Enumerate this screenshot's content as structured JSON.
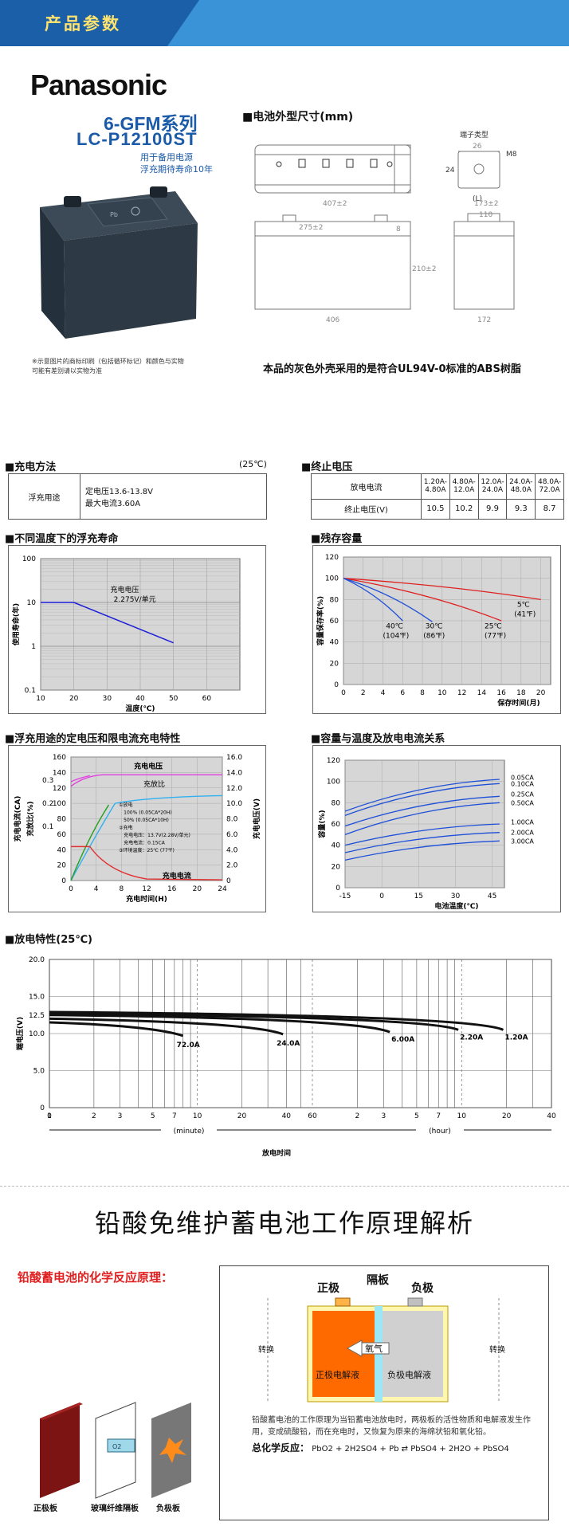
{
  "banner": {
    "title": "产品参数"
  },
  "product": {
    "brand": "Panasonic",
    "series": "6-GFM系列",
    "model": "LC-P12100ST",
    "usage_line1": "用于备用电源",
    "usage_line2": "浮充期待寿命10年",
    "note_line1": "※示意图片的商标印刷（包括循环标记）和颜色与实物",
    "note_line2": "可能有差别请以实物为准"
  },
  "dimensions": {
    "title": "■电池外型尺寸(mm)",
    "terminal_label": "端子类型",
    "terminal_l": "(L)",
    "t_26": "26",
    "t_m8": "M8",
    "t_24": "24",
    "d_top_w": "407±2",
    "d_top_d": "173±2",
    "d_inner": "275±2",
    "d_8": "8",
    "d_110": "110",
    "d_h": "210±2",
    "d_406": "406",
    "d_172": "172",
    "caption": "本品的灰色外壳采用的是符合UL94V-0标准的ABS树脂"
  },
  "charging": {
    "title": "■充电方法",
    "temp": "(25℃)",
    "mode": "浮充用途",
    "voltage": "定电压13.6-13.8V",
    "current": "最大电流3.60A"
  },
  "cutoff": {
    "title": "■终止电压",
    "row1_label": "放电电流",
    "row2_label": "终止电压(V)",
    "currents": [
      "1.20A-4.80A",
      "4.80A-12.0A",
      "12.0A-24.0A",
      "24.0A-48.0A",
      "48.0A-72.0A"
    ],
    "voltages": [
      "10.5",
      "10.2",
      "9.9",
      "9.3",
      "8.7"
    ]
  },
  "life_chart_title": "■不同温度下的浮充寿命",
  "capacity_chart_title": "■残存容量",
  "charge_chart_title": "■浮充用途的定电压和限电流充电特性",
  "tempcap_chart_title": "■容量与温度及放电电流关系",
  "discharge_chart_title": "■放电特性(25℃)",
  "chart_data": [
    {
      "type": "line",
      "title": "不同温度下的浮充寿命",
      "xlabel": "温度(℃)",
      "ylabel": "使用寿命(年)",
      "x_ticks": [
        "10",
        "20",
        "30",
        "40",
        "50",
        "60"
      ],
      "y_ticks": [
        "100",
        "10",
        "1",
        "0.1"
      ],
      "annotation_line1": "充电电压",
      "annotation_line2": "2.275V/单元",
      "series": [
        {
          "name": "life",
          "x": [
            10,
            20,
            50
          ],
          "y": [
            10,
            10,
            1.2
          ]
        }
      ]
    },
    {
      "type": "line",
      "title": "残存容量",
      "xlabel": "保存时间(月)",
      "ylabel": "容量保存率(%)",
      "x_ticks": [
        "0",
        "2",
        "4",
        "6",
        "8",
        "10",
        "12",
        "14",
        "16",
        "18",
        "20"
      ],
      "y_ticks": [
        "0",
        "20",
        "40",
        "60",
        "80",
        "100",
        "120"
      ],
      "series": [
        {
          "name": "5℃",
          "sub": "(41℉)",
          "x": [
            0,
            20
          ],
          "y": [
            100,
            80
          ]
        },
        {
          "name": "25℃",
          "sub": "(77℉)",
          "x": [
            0,
            16
          ],
          "y": [
            100,
            60
          ]
        },
        {
          "name": "30℃",
          "sub": "(86℉)",
          "x": [
            0,
            9
          ],
          "y": [
            100,
            59
          ]
        },
        {
          "name": "40℃",
          "sub": "(104℉)",
          "x": [
            0,
            6
          ],
          "y": [
            100,
            60
          ]
        }
      ]
    },
    {
      "type": "line",
      "title": "浮充用途的定电压和限电流充电特性",
      "xlabel": "充电时间(H)",
      "ylabel_left1": "充电电流(CA)",
      "ylabel_left2": "充放比(%)",
      "ylabel_right": "充电电压(V)",
      "x_ticks": [
        "0",
        "4",
        "8",
        "12",
        "16",
        "20",
        "24"
      ],
      "y_ticks_pct": [
        "0",
        "20",
        "40",
        "60",
        "80",
        "100",
        "120",
        "140",
        "160"
      ],
      "y_ticks_ca": [
        "0.1",
        "0.2",
        "0.3"
      ],
      "y_ticks_v": [
        "0",
        "2.0",
        "4.0",
        "6.0",
        "8.0",
        "10.0",
        "12.0",
        "14.0",
        "16.0"
      ],
      "label_voltage": "充电电压",
      "label_ratio": "充放比",
      "label_current": "充电电流",
      "legend_1": "①放电",
      "legend_1a": "100% (0.05CA*20H)",
      "legend_1b": "50% (0.05CA*10H)",
      "legend_2": "②充电",
      "legend_2a": "充电电压：13.7V(2.28V/单元)",
      "legend_2b": "充电电流：0.15CA",
      "legend_3": "③环境温度：25℃ (77℉)"
    },
    {
      "type": "line",
      "title": "容量与温度及放电电流关系",
      "xlabel": "电池温度(℃)",
      "ylabel": "容量(%)",
      "x_ticks": [
        "-15",
        "0",
        "15",
        "30",
        "45"
      ],
      "y_ticks": [
        "0",
        "20",
        "40",
        "60",
        "80",
        "100",
        "120"
      ],
      "series": [
        {
          "name": "0.05CA",
          "y": [
            72,
            102
          ]
        },
        {
          "name": "0.10CA",
          "y": [
            68,
            98
          ]
        },
        {
          "name": "0.25CA",
          "y": [
            58,
            86
          ]
        },
        {
          "name": "0.50CA",
          "y": [
            50,
            80
          ]
        },
        {
          "name": "1.00CA",
          "y": [
            40,
            60
          ]
        },
        {
          "name": "2.00CA",
          "y": [
            33,
            52
          ]
        },
        {
          "name": "3.00CA",
          "y": [
            26,
            44
          ]
        }
      ]
    },
    {
      "type": "line",
      "title": "放电特性(25℃)",
      "xlabel": "放电时间",
      "ylabel": "端电压(V)",
      "y_ticks": [
        "0",
        "5.0",
        "10.0",
        "12.5",
        "15.0",
        "20.0"
      ],
      "x_ticks_min": [
        "0",
        "1",
        "2",
        "3",
        "5",
        "7",
        "10",
        "20",
        "40",
        "60"
      ],
      "x_ticks_hour": [
        "2",
        "3",
        "5",
        "7",
        "10",
        "20",
        "40"
      ],
      "unit_min": "(minute)",
      "unit_hour": "(hour)",
      "series": [
        {
          "name": "72.0A",
          "end_voltage": 9.7
        },
        {
          "name": "24.0A",
          "end_voltage": 9.9
        },
        {
          "name": "6.00A",
          "end_voltage": 10.2
        },
        {
          "name": "2.20A",
          "end_voltage": 10.5
        },
        {
          "name": "1.20A",
          "end_voltage": 10.5
        }
      ]
    }
  ],
  "principle": {
    "title": "铅酸免维护蓄电池工作原理解析",
    "subtitle": "铅酸蓄电池的化学反应原理：",
    "pos": "正极",
    "sep": "隔板",
    "neg": "负极",
    "oxygen": "氧气",
    "pos_elec": "正极电解液",
    "neg_elec": "负极电解液",
    "convert": "转换",
    "plate_pos": "正极板",
    "plate_sep": "玻璃纤维隔板",
    "plate_neg": "负极板",
    "desc": "铅酸蓄电池的工作原理为当铅蓄电池放电时，两极板的活性物质和电解液发生作用，变成硫酸铅，而在充电时，又恢复为原来的海绵状铅和氧化铅。",
    "formula_label": "总化学反应：",
    "formula": "PbO2 + 2H2SO4 + Pb ⇄ PbSO4 + 2H2O + PbSO4"
  }
}
